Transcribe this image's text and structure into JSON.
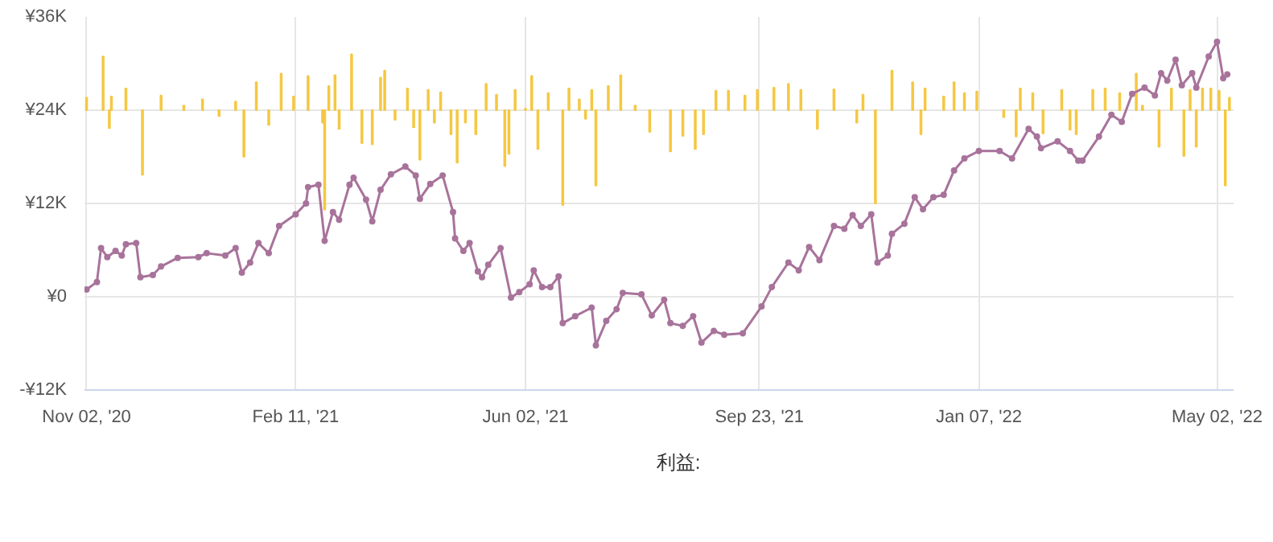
{
  "chart_data": {
    "type": "line",
    "xlim": [
      "2020-11-01",
      "2022-05-10"
    ],
    "ylim": [
      -12000,
      36000
    ],
    "xticks": [
      {
        "value": "2020-11-02",
        "label": "Nov 02, '20"
      },
      {
        "value": "2021-02-11",
        "label": "Feb 11, '21"
      },
      {
        "value": "2021-06-02",
        "label": "Jun 02, '21"
      },
      {
        "value": "2021-09-23",
        "label": "Sep 23, '21"
      },
      {
        "value": "2022-01-07",
        "label": "Jan 07, '22"
      },
      {
        "value": "2022-05-02",
        "label": "May 02, '22"
      }
    ],
    "yticks": [
      {
        "value": -12000,
        "label": "-¥12K"
      },
      {
        "value": 0,
        "label": "¥0"
      },
      {
        "value": 12000,
        "label": "¥12K"
      },
      {
        "value": 24000,
        "label": "¥24K"
      },
      {
        "value": 36000,
        "label": "¥36K"
      }
    ],
    "grid": true,
    "legend": "bottom",
    "marker": "circle",
    "line_style": "solid",
    "series": [
      {
        "name": "利益:",
        "type": "bar",
        "color": "#f5c842",
        "x": [
          "2020-11-02",
          "2020-11-10",
          "2020-11-13",
          "2020-11-14",
          "2020-11-21",
          "2020-11-29",
          "2020-12-08",
          "2020-12-19",
          "2020-12-28",
          "2021-01-05",
          "2021-01-13",
          "2021-01-17",
          "2021-01-23",
          "2021-01-29",
          "2021-02-04",
          "2021-02-10",
          "2021-02-17",
          "2021-02-24",
          "2021-02-25",
          "2021-02-27",
          "2021-03-02",
          "2021-03-04",
          "2021-03-10",
          "2021-03-15",
          "2021-03-20",
          "2021-03-24",
          "2021-03-26",
          "2021-03-31",
          "2021-04-06",
          "2021-04-09",
          "2021-04-12",
          "2021-04-16",
          "2021-04-19",
          "2021-04-22",
          "2021-04-27",
          "2021-04-30",
          "2021-05-04",
          "2021-05-09",
          "2021-05-14",
          "2021-05-19",
          "2021-05-23",
          "2021-05-25",
          "2021-05-28",
          "2021-06-02",
          "2021-06-05",
          "2021-06-08",
          "2021-06-13",
          "2021-06-20",
          "2021-06-23",
          "2021-06-28",
          "2021-07-01",
          "2021-07-04",
          "2021-07-06",
          "2021-07-12",
          "2021-07-18",
          "2021-07-25",
          "2021-08-01",
          "2021-08-11",
          "2021-08-17",
          "2021-08-23",
          "2021-08-27",
          "2021-09-02",
          "2021-09-08",
          "2021-09-16",
          "2021-09-22",
          "2021-09-30",
          "2021-10-07",
          "2021-10-13",
          "2021-10-21",
          "2021-10-29",
          "2021-11-09",
          "2021-11-12",
          "2021-11-18",
          "2021-11-26",
          "2021-12-06",
          "2021-12-10",
          "2021-12-12",
          "2021-12-21",
          "2021-12-26",
          "2021-12-31",
          "2022-01-06",
          "2022-01-19",
          "2022-01-25",
          "2022-01-27",
          "2022-02-02",
          "2022-02-07",
          "2022-02-16",
          "2022-02-20",
          "2022-02-23",
          "2022-03-03",
          "2022-03-09",
          "2022-03-16",
          "2022-03-24",
          "2022-03-27",
          "2022-04-04",
          "2022-04-10",
          "2022-04-16",
          "2022-04-19",
          "2022-04-22",
          "2022-04-25",
          "2022-04-29",
          "2022-05-03",
          "2022-05-06",
          "2022-05-08"
        ],
        "values": [
          1600,
          6900,
          -2300,
          1750,
          2800,
          -8300,
          1900,
          600,
          1400,
          -750,
          1100,
          -6000,
          3600,
          -1900,
          4700,
          1750,
          4400,
          -1600,
          -12800,
          3100,
          4500,
          -2400,
          7200,
          -4250,
          -4400,
          4200,
          5100,
          -1250,
          2800,
          -2200,
          -6400,
          2600,
          -1600,
          2300,
          -3100,
          -6750,
          -1600,
          -3100,
          3400,
          2000,
          -7200,
          -5600,
          2600,
          200,
          4400,
          -5000,
          2200,
          -12200,
          2800,
          1400,
          -1100,
          2600,
          -9700,
          3100,
          4500,
          600,
          -2800,
          -5300,
          -3300,
          -5000,
          -3100,
          2500,
          2500,
          1900,
          2600,
          2900,
          3400,
          2600,
          -2400,
          2700,
          -1600,
          2000,
          -12000,
          5100,
          3600,
          -3100,
          2800,
          1750,
          3600,
          2200,
          2400,
          -900,
          -3400,
          2800,
          2200,
          -3000,
          2600,
          -2500,
          -3100,
          2600,
          2800,
          2200,
          4700,
          600,
          -4700,
          2800,
          -5900,
          2600,
          -4700,
          2800,
          2800,
          2500,
          -9700,
          1600
        ],
        "base": [
          24000,
          24000,
          24000,
          24000,
          24000,
          24000,
          24000,
          24000,
          24000,
          24000,
          24000,
          24000,
          24000,
          24000,
          24000,
          24000,
          24000,
          24000,
          24000,
          24000,
          24000,
          24000,
          24000,
          24000,
          24000,
          24000,
          24000,
          24000,
          24000,
          24000,
          24000,
          24000,
          24000,
          24000,
          24000,
          24000,
          24000,
          24000,
          24000,
          24000,
          24000,
          24000,
          24000,
          24000,
          24000,
          24000,
          24000,
          24000,
          24000,
          24000,
          24000,
          24000,
          24000,
          24000,
          24000,
          24000,
          24000,
          24000,
          24000,
          24000,
          24000,
          24000,
          24000,
          24000,
          24000,
          24000,
          24000,
          24000,
          24000,
          24000,
          24000,
          24000,
          24000,
          24000,
          24000,
          24000,
          24000,
          24000,
          24000,
          24000,
          24000,
          24000,
          24000,
          24000,
          24000,
          24000,
          24000,
          24000,
          24000,
          24000,
          24000,
          24000,
          24000,
          24000,
          24000,
          24000,
          24000,
          24000,
          24000,
          24000,
          24000,
          24000,
          24000,
          24000
        ]
      },
      {
        "color": "#a8739b",
        "x": [
          "2020-11-02",
          "2020-11-07",
          "2020-11-09",
          "2020-11-12",
          "2020-11-16",
          "2020-11-19",
          "2020-11-21",
          "2020-11-26",
          "2020-11-28",
          "2020-12-04",
          "2020-12-08",
          "2020-12-16",
          "2020-12-26",
          "2020-12-30",
          "2021-01-08",
          "2021-01-13",
          "2021-01-16",
          "2021-01-20",
          "2021-01-24",
          "2021-01-29",
          "2021-02-03",
          "2021-02-11",
          "2021-02-16",
          "2021-02-17",
          "2021-02-22",
          "2021-02-25",
          "2021-03-01",
          "2021-03-04",
          "2021-03-09",
          "2021-03-11",
          "2021-03-17",
          "2021-03-20",
          "2021-03-24",
          "2021-03-29",
          "2021-04-05",
          "2021-04-10",
          "2021-04-12",
          "2021-04-17",
          "2021-04-23",
          "2021-04-28",
          "2021-04-29",
          "2021-05-03",
          "2021-05-06",
          "2021-05-10",
          "2021-05-12",
          "2021-05-15",
          "2021-05-21",
          "2021-05-26",
          "2021-05-30",
          "2021-06-04",
          "2021-06-06",
          "2021-06-10",
          "2021-06-14",
          "2021-06-18",
          "2021-06-20",
          "2021-06-26",
          "2021-07-04",
          "2021-07-06",
          "2021-07-11",
          "2021-07-16",
          "2021-07-19",
          "2021-07-28",
          "2021-08-02",
          "2021-08-08",
          "2021-08-11",
          "2021-08-17",
          "2021-08-22",
          "2021-08-26",
          "2021-09-01",
          "2021-09-06",
          "2021-09-15",
          "2021-09-24",
          "2021-09-29",
          "2021-10-07",
          "2021-10-12",
          "2021-10-17",
          "2021-10-22",
          "2021-10-29",
          "2021-11-03",
          "2021-11-07",
          "2021-11-11",
          "2021-11-16",
          "2021-11-19",
          "2021-11-24",
          "2021-11-26",
          "2021-12-02",
          "2021-12-07",
          "2021-12-11",
          "2021-12-16",
          "2021-12-21",
          "2021-12-26",
          "2021-12-31",
          "2022-01-07",
          "2022-01-17",
          "2022-01-23",
          "2022-01-31",
          "2022-02-04",
          "2022-02-06",
          "2022-02-14",
          "2022-02-20",
          "2022-02-24",
          "2022-02-26",
          "2022-03-06",
          "2022-03-12",
          "2022-03-17",
          "2022-03-22",
          "2022-03-28",
          "2022-04-02",
          "2022-04-05",
          "2022-04-08",
          "2022-04-12",
          "2022-04-15",
          "2022-04-20",
          "2022-04-22",
          "2022-04-28",
          "2022-05-02",
          "2022-05-05",
          "2022-05-07"
        ],
        "values": [
          940,
          1900,
          6250,
          5100,
          5900,
          5300,
          6750,
          6900,
          2500,
          2800,
          3900,
          5000,
          5100,
          5600,
          5300,
          6250,
          3100,
          4400,
          6900,
          5600,
          9100,
          10600,
          12000,
          14100,
          14400,
          7200,
          10900,
          9900,
          14400,
          15300,
          12500,
          9700,
          13750,
          15750,
          16750,
          15600,
          12600,
          14500,
          15600,
          10900,
          7500,
          5900,
          6900,
          3250,
          2500,
          4100,
          6250,
          -100,
          600,
          1600,
          3400,
          1250,
          1250,
          2600,
          -3400,
          -2500,
          -1400,
          -6250,
          -3100,
          -1600,
          500,
          300,
          -2400,
          -400,
          -3400,
          -3750,
          -2500,
          -5900,
          -4400,
          -4900,
          -4700,
          -1250,
          1250,
          4400,
          3400,
          6400,
          4700,
          9100,
          8750,
          10500,
          9100,
          10600,
          4400,
          5300,
          8100,
          9400,
          12800,
          11250,
          12800,
          13100,
          16250,
          17800,
          18750,
          18750,
          17800,
          21600,
          20600,
          19100,
          20000,
          18750,
          17500,
          17500,
          20600,
          23400,
          22500,
          26100,
          26900,
          25900,
          28750,
          27800,
          30500,
          27200,
          28750,
          26900,
          30900,
          32800,
          28100,
          28600
        ]
      }
    ]
  }
}
